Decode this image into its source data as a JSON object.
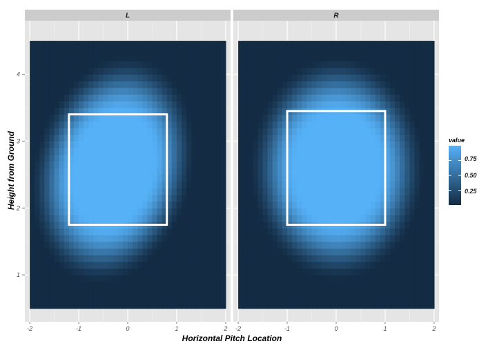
{
  "chart_data": {
    "type": "heatmap",
    "title": "",
    "xlabel": "Horizontal Pitch Location",
    "ylabel": "Height from Ground",
    "xlim": [
      -2.1,
      2.1
    ],
    "ylim": [
      0.3,
      4.8
    ],
    "x_ticks": [
      -2,
      -1,
      0,
      1,
      2
    ],
    "y_ticks": [
      1,
      2,
      3,
      4
    ],
    "x_tick_labels": [
      "-2",
      "-1",
      "0",
      "1",
      "2"
    ],
    "y_tick_labels": [
      "1",
      "2",
      "3",
      "4"
    ],
    "tile_extent": {
      "x": [
        -2,
        2
      ],
      "y": [
        0.5,
        4.5
      ]
    },
    "tile_grid": {
      "nx": 40,
      "ny": 40
    },
    "fill_range": [
      0,
      1
    ],
    "colors": {
      "low": "#132b43",
      "high": "#56b1f7",
      "panel_background": "#e5e5e5",
      "strip_background": "#cccccc",
      "grid": "#f2f2f2",
      "zone_outline": "#ffffff"
    },
    "legend": {
      "title": "value",
      "breaks": [
        0.75,
        0.5,
        0.25
      ],
      "labels": [
        "0.75",
        "0.50",
        "0.25"
      ],
      "position": "right"
    },
    "panels": [
      {
        "label": "L",
        "density": {
          "center_x": -0.3,
          "center_y": 2.58,
          "radius_x": 1.28,
          "radius_y": 1.32,
          "tilt": 0.5,
          "edge_softness": 0.7
        },
        "zone": {
          "x_min": -1.2,
          "x_max": 0.8,
          "y_min": 1.75,
          "y_max": 3.4
        }
      },
      {
        "label": "R",
        "density": {
          "center_x": 0.02,
          "center_y": 2.6,
          "radius_x": 1.38,
          "radius_y": 1.3,
          "tilt": 0.0,
          "edge_softness": 0.7
        },
        "zone": {
          "x_min": -1.0,
          "x_max": 1.0,
          "y_min": 1.75,
          "y_max": 3.45
        }
      }
    ]
  }
}
